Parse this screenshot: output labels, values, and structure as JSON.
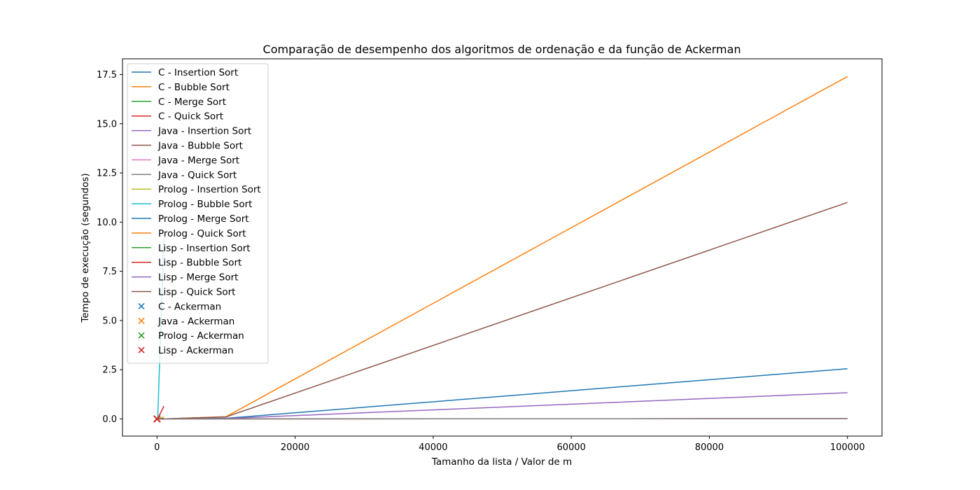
{
  "chart_data": {
    "type": "line",
    "title": "Comparação de desempenho dos algoritmos de ordenação e da função de Ackerman",
    "xlabel": "Tamanho da lista / Valor de m",
    "ylabel": "Tempo de execução (segundos)",
    "xlim": [
      -5000,
      105000
    ],
    "ylim": [
      -0.875,
      18.3
    ],
    "x_ticks": [
      0,
      20000,
      40000,
      60000,
      80000,
      100000
    ],
    "x_tick_labels": [
      "0",
      "20000",
      "40000",
      "60000",
      "80000",
      "100000"
    ],
    "y_ticks": [
      0,
      2.5,
      5,
      7.5,
      10,
      12.5,
      15,
      17.5
    ],
    "y_tick_labels": [
      "0.0",
      "2.5",
      "5.0",
      "7.5",
      "10.0",
      "12.5",
      "15.0",
      "17.5"
    ],
    "grid": false,
    "legend_position": "upper-left",
    "series": [
      {
        "name": "C - Insertion Sort",
        "color": "#1f77b4",
        "x": [
          100,
          1000,
          10000,
          100000
        ],
        "y": [
          0,
          0.001,
          0.03,
          2.55
        ]
      },
      {
        "name": "C - Bubble Sort",
        "color": "#ff7f0e",
        "x": [
          100,
          1000,
          10000,
          100000
        ],
        "y": [
          0,
          0.002,
          0.11,
          17.4
        ]
      },
      {
        "name": "C - Merge Sort",
        "color": "#2ca02c",
        "x": [
          100,
          1000,
          10000,
          100000
        ],
        "y": [
          0,
          0,
          0.001,
          0.01
        ]
      },
      {
        "name": "C - Quick Sort",
        "color": "#d62728",
        "x": [
          100,
          1000,
          10000,
          100000
        ],
        "y": [
          0,
          0,
          0.001,
          0.01
        ]
      },
      {
        "name": "Java - Insertion Sort",
        "color": "#9467bd",
        "x": [
          100,
          1000,
          10000,
          100000
        ],
        "y": [
          0,
          0.002,
          0.02,
          1.33
        ]
      },
      {
        "name": "Java - Bubble Sort",
        "color": "#8c564b",
        "x": [
          100,
          1000,
          10000,
          100000
        ],
        "y": [
          0,
          0.003,
          0.1,
          11.0
        ]
      },
      {
        "name": "Java - Merge Sort",
        "color": "#e377c2",
        "x": [
          100,
          1000,
          10000,
          100000
        ],
        "y": [
          0,
          0,
          0.002,
          0.01
        ]
      },
      {
        "name": "Java - Quick Sort",
        "color": "#7f7f7f",
        "x": [
          100,
          1000,
          10000,
          100000
        ],
        "y": [
          0,
          0,
          0.002,
          0.01
        ]
      },
      {
        "name": "Prolog - Insertion Sort",
        "color": "#bcbd22",
        "x": [
          100,
          1000
        ],
        "y": [
          0,
          0.1
        ]
      },
      {
        "name": "Prolog - Bubble Sort",
        "color": "#17becf",
        "x": [
          100,
          1000
        ],
        "y": [
          0.01,
          9.3
        ]
      },
      {
        "name": "Prolog - Merge Sort",
        "color": "#1f77b4",
        "x": [
          100,
          1000
        ],
        "y": [
          0,
          0.005
        ]
      },
      {
        "name": "Prolog - Quick Sort",
        "color": "#ff7f0e",
        "x": [
          100,
          1000
        ],
        "y": [
          0,
          0.005
        ]
      },
      {
        "name": "Lisp - Insertion Sort",
        "color": "#2ca02c",
        "x": [
          100,
          1000
        ],
        "y": [
          0,
          0.02
        ]
      },
      {
        "name": "Lisp - Bubble Sort",
        "color": "#d62728",
        "x": [
          100,
          1000
        ],
        "y": [
          0.01,
          0.65
        ]
      },
      {
        "name": "Lisp - Merge Sort",
        "color": "#9467bd",
        "x": [
          100,
          1000
        ],
        "y": [
          0,
          0.005
        ]
      },
      {
        "name": "Lisp - Quick Sort",
        "color": "#8c564b",
        "x": [
          100,
          1000
        ],
        "y": [
          0,
          0.005
        ]
      }
    ],
    "scatter": [
      {
        "name": "C - Ackerman",
        "color": "#1f77b4",
        "marker": "x",
        "x": [
          0,
          1,
          2,
          3
        ],
        "y": [
          0,
          0,
          0,
          0
        ]
      },
      {
        "name": "Java - Ackerman",
        "color": "#ff7f0e",
        "marker": "x",
        "x": [
          0,
          1,
          2,
          3
        ],
        "y": [
          0,
          0,
          0,
          0
        ]
      },
      {
        "name": "Prolog - Ackerman",
        "color": "#2ca02c",
        "marker": "x",
        "x": [
          0,
          1,
          2,
          3
        ],
        "y": [
          0,
          0,
          0,
          0
        ]
      },
      {
        "name": "Lisp - Ackerman",
        "color": "#d62728",
        "marker": "x",
        "x": [
          0,
          1,
          2,
          3
        ],
        "y": [
          0,
          0,
          0,
          0
        ]
      }
    ]
  }
}
